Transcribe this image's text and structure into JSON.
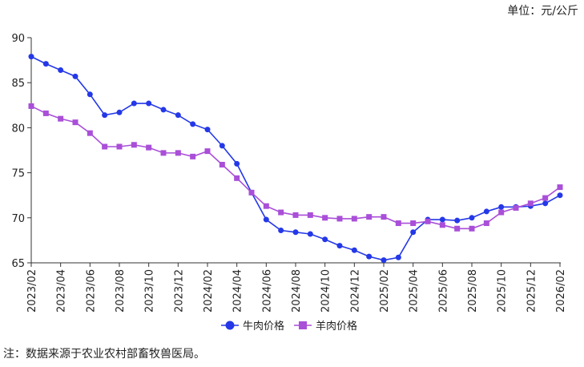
{
  "chart_data": {
    "type": "line",
    "unit": "单位：元/公斤",
    "note": "注：数据来源于农业农村部畜牧兽医局。",
    "categories": [
      "2023/02",
      null,
      "2023/04",
      null,
      "2023/06",
      null,
      "2023/08",
      null,
      "2023/10",
      null,
      "2023/12",
      null,
      "2024/02",
      null,
      "2024/04",
      null,
      "2024/06",
      null,
      "2024/08",
      null,
      "2024/10",
      null,
      "2024/12",
      null,
      "2025/02",
      null,
      "2025/04",
      null,
      "2025/06",
      null,
      "2025/08",
      null,
      "2025/10",
      null,
      "2025/12",
      null,
      "2026/02"
    ],
    "series": [
      {
        "name": "牛肉价格",
        "color": "#2438e8",
        "marker": "circle",
        "values": [
          87.9,
          87.1,
          86.4,
          85.7,
          83.7,
          81.4,
          81.7,
          82.7,
          82.7,
          82.0,
          81.4,
          80.4,
          79.8,
          78.0,
          76.0,
          72.8,
          69.8,
          68.6,
          68.4,
          68.2,
          67.6,
          66.9,
          66.4,
          65.7,
          65.3,
          65.6,
          68.4,
          69.8,
          69.8,
          69.7,
          70.0,
          70.7,
          71.2,
          71.2,
          71.3,
          71.6,
          72.5
        ]
      },
      {
        "name": "羊肉价格",
        "color": "#a94fd8",
        "marker": "square",
        "values": [
          82.4,
          81.6,
          81.0,
          80.6,
          79.4,
          77.9,
          77.9,
          78.1,
          77.8,
          77.2,
          77.2,
          76.8,
          77.4,
          75.9,
          74.4,
          72.8,
          71.3,
          70.6,
          70.3,
          70.3,
          70.0,
          69.9,
          69.9,
          70.1,
          70.1,
          69.4,
          69.4,
          69.6,
          69.2,
          68.8,
          68.8,
          69.4,
          70.6,
          71.1,
          71.6,
          72.2,
          73.4
        ]
      }
    ],
    "ylim": [
      65,
      90
    ],
    "yticks": [
      65,
      70,
      75,
      80,
      85,
      90
    ],
    "grid": false
  }
}
